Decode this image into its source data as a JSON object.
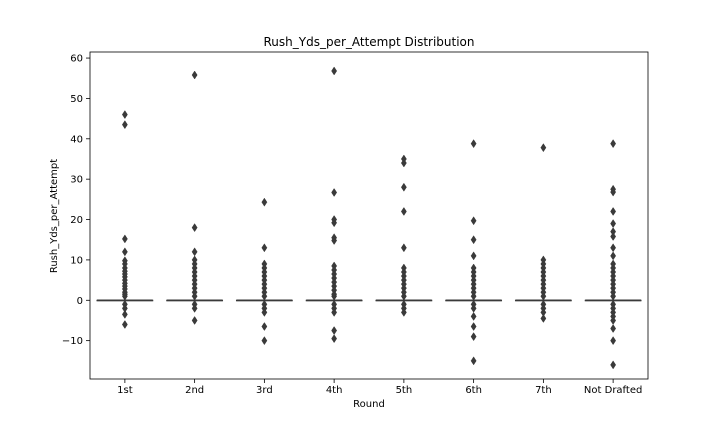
{
  "chart_data": {
    "type": "box",
    "title": "Rush_Yds_per_Attempt Distribution",
    "xlabel": "Round",
    "ylabel": "Rush_Yds_per_Attempt",
    "categories": [
      "1st",
      "2nd",
      "3rd",
      "4th",
      "5th",
      "6th",
      "7th",
      "Not Drafted"
    ],
    "ylim": [
      -19.5,
      61.5
    ],
    "yticks": [
      -10,
      0,
      10,
      20,
      30,
      40,
      50,
      60
    ],
    "grid": false,
    "box_color": "#3a3a3a",
    "groups": [
      {
        "category": "1st",
        "median": 0,
        "q1": 0,
        "q3": 0,
        "whisker_low": 0,
        "whisker_high": 0,
        "outliers": [
          46,
          43.5,
          15.2,
          12,
          9.8,
          9,
          8,
          7.2,
          6.5,
          5.8,
          5,
          4.2,
          3.5,
          2.8,
          2,
          1.5,
          1,
          -1,
          -2,
          -3.5,
          -6
        ]
      },
      {
        "category": "2nd",
        "median": 0,
        "q1": 0,
        "q3": 0,
        "whisker_low": 0,
        "whisker_high": 0,
        "outliers": [
          55.8,
          18,
          12,
          10,
          9,
          8,
          7,
          6,
          5,
          4,
          3,
          2,
          1,
          -1,
          -2,
          -5
        ]
      },
      {
        "category": "3rd",
        "median": 0,
        "q1": 0,
        "q3": 0,
        "whisker_low": 0,
        "whisker_high": 0,
        "outliers": [
          24.3,
          13,
          9,
          8,
          7,
          6,
          5,
          4,
          3,
          2,
          1,
          -1,
          -2,
          -3,
          -6.5,
          -10
        ]
      },
      {
        "category": "4th",
        "median": 0,
        "q1": 0,
        "q3": 0,
        "whisker_low": 0,
        "whisker_high": 0,
        "outliers": [
          56.8,
          26.7,
          20,
          19.2,
          15.5,
          14.8,
          8.5,
          7.5,
          6.5,
          5.5,
          4.5,
          3.5,
          2.5,
          1.5,
          1,
          -1,
          -2,
          -3,
          -7.5,
          -9.5
        ]
      },
      {
        "category": "5th",
        "median": 0,
        "q1": 0,
        "q3": 0,
        "whisker_low": 0,
        "whisker_high": 0,
        "outliers": [
          35,
          34,
          28,
          22,
          13,
          8,
          7,
          6,
          5,
          4,
          3,
          2,
          1,
          -1,
          -2,
          -3
        ]
      },
      {
        "category": "6th",
        "median": 0,
        "q1": 0,
        "q3": 0,
        "whisker_low": 0,
        "whisker_high": 0,
        "outliers": [
          38.8,
          19.7,
          15,
          11,
          8,
          7,
          6,
          5,
          4,
          3,
          2,
          1,
          -1,
          -2,
          -4,
          -6.5,
          -9,
          -15
        ]
      },
      {
        "category": "7th",
        "median": 0,
        "q1": 0,
        "q3": 0,
        "whisker_low": 0,
        "whisker_high": 0,
        "outliers": [
          37.8,
          10,
          9,
          8,
          7,
          6,
          5,
          4,
          3,
          2,
          1,
          -1,
          -2,
          -3,
          -4.5
        ]
      },
      {
        "category": "Not Drafted",
        "median": 0,
        "q1": 0,
        "q3": 0,
        "whisker_low": 0,
        "whisker_high": 0,
        "outliers": [
          38.8,
          27.5,
          26.8,
          22,
          19,
          17,
          15.8,
          13,
          11,
          9,
          8,
          7,
          6,
          5,
          4,
          3,
          2,
          1,
          -1,
          -2,
          -3,
          -4,
          -5,
          -7,
          -10,
          -16
        ]
      }
    ]
  }
}
